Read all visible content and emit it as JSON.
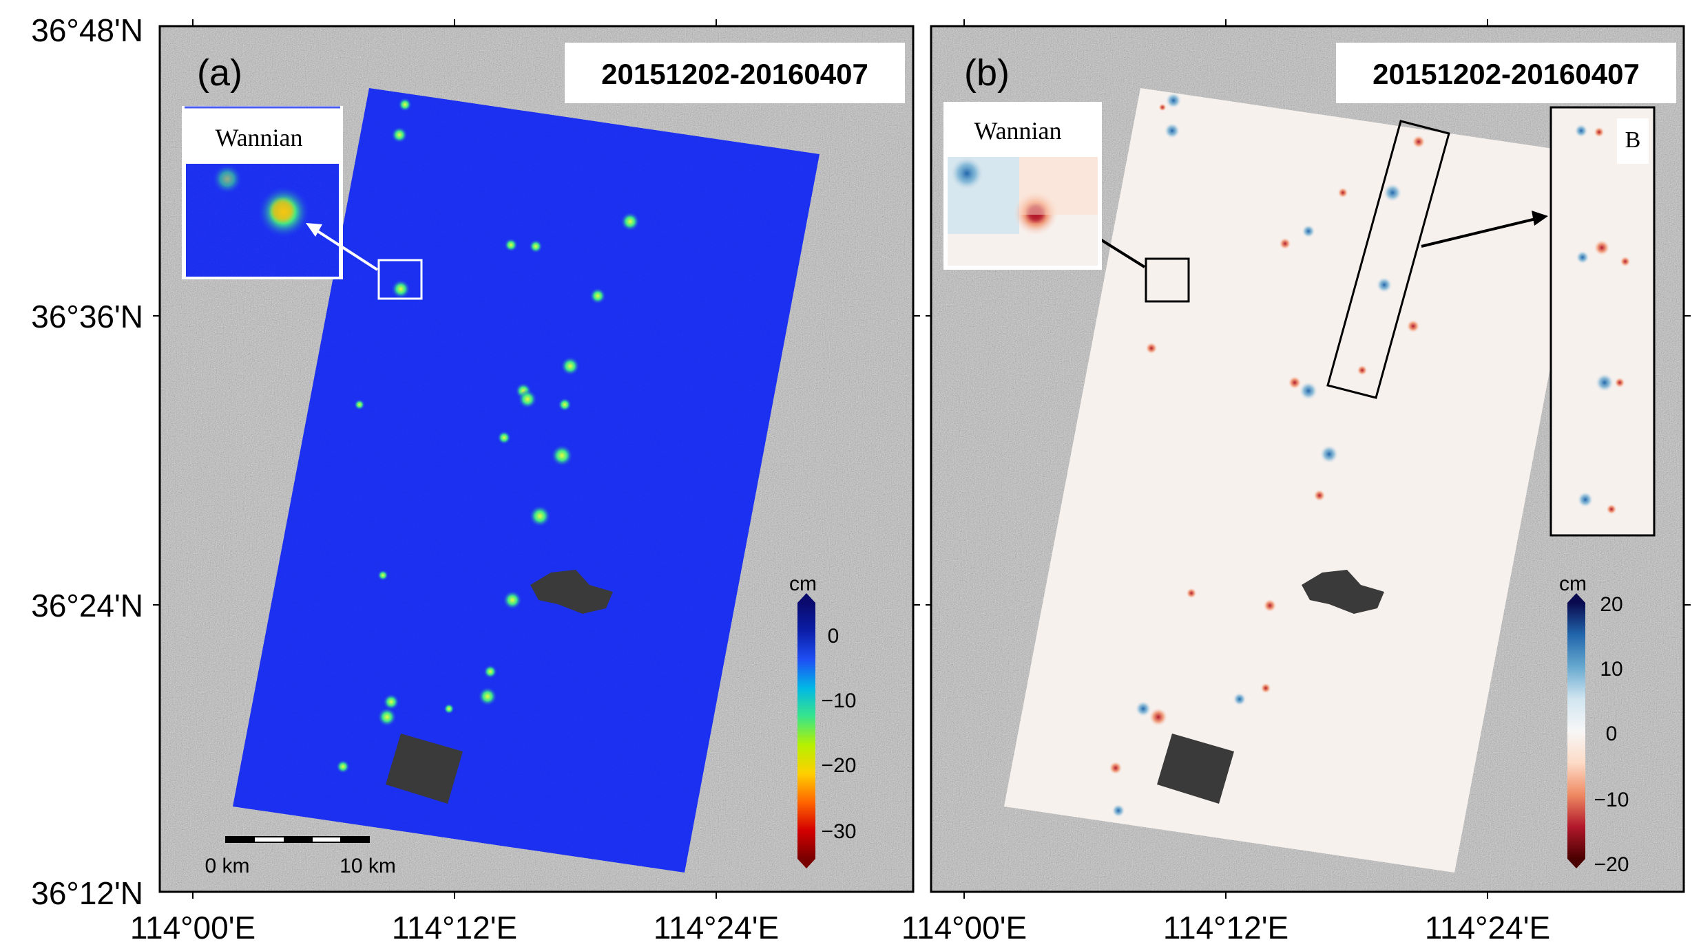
{
  "panels": [
    {
      "id": "a",
      "label": "(a)",
      "date_range": "20151202-20160407",
      "inset": {
        "title": "Wannian"
      },
      "colorbar": {
        "unit": "cm",
        "ticks": [
          "0",
          "−10",
          "−20",
          "−30"
        ],
        "min": -35,
        "max": 5,
        "colors": [
          "#7a0000",
          "#d40000",
          "#ff6600",
          "#ffd000",
          "#b6f000",
          "#38e58a",
          "#00b8e6",
          "#1e4ff5",
          "#0b1ea8",
          "#0a0a6e"
        ]
      },
      "scalebar": {
        "start_label": "0 km",
        "end_label": "10 km"
      },
      "data_swath_color": "#1a2ff0"
    },
    {
      "id": "b",
      "label": "(b)",
      "date_range": "20151202-20160407",
      "inset": {
        "title": "Wannian"
      },
      "inset_b": {
        "title": "B"
      },
      "colorbar": {
        "unit": "cm",
        "ticks": [
          "20",
          "10",
          "0",
          "−10",
          "−20"
        ],
        "min": -20,
        "max": 20,
        "colors": [
          "#4a0000",
          "#b2182b",
          "#ef8a62",
          "#fddbc7",
          "#f7f7f7",
          "#d1e5f0",
          "#67a9cf",
          "#2166ac",
          "#0a0a50"
        ]
      },
      "data_swath_color": "#f7f1ee"
    }
  ],
  "axes": {
    "y_ticks": [
      "36°48'N",
      "36°36'N",
      "36°24'N",
      "36°12'N"
    ],
    "x_ticks_a": [
      "114°00'E",
      "114°12'E",
      "114°24'E"
    ],
    "x_ticks_b": [
      "114°00'E",
      "114°12'E",
      "114°24'E"
    ]
  },
  "colors": {
    "frame": "#000000",
    "sar_background": "#9a9a9a",
    "reservoir": "#3a3a3a"
  }
}
